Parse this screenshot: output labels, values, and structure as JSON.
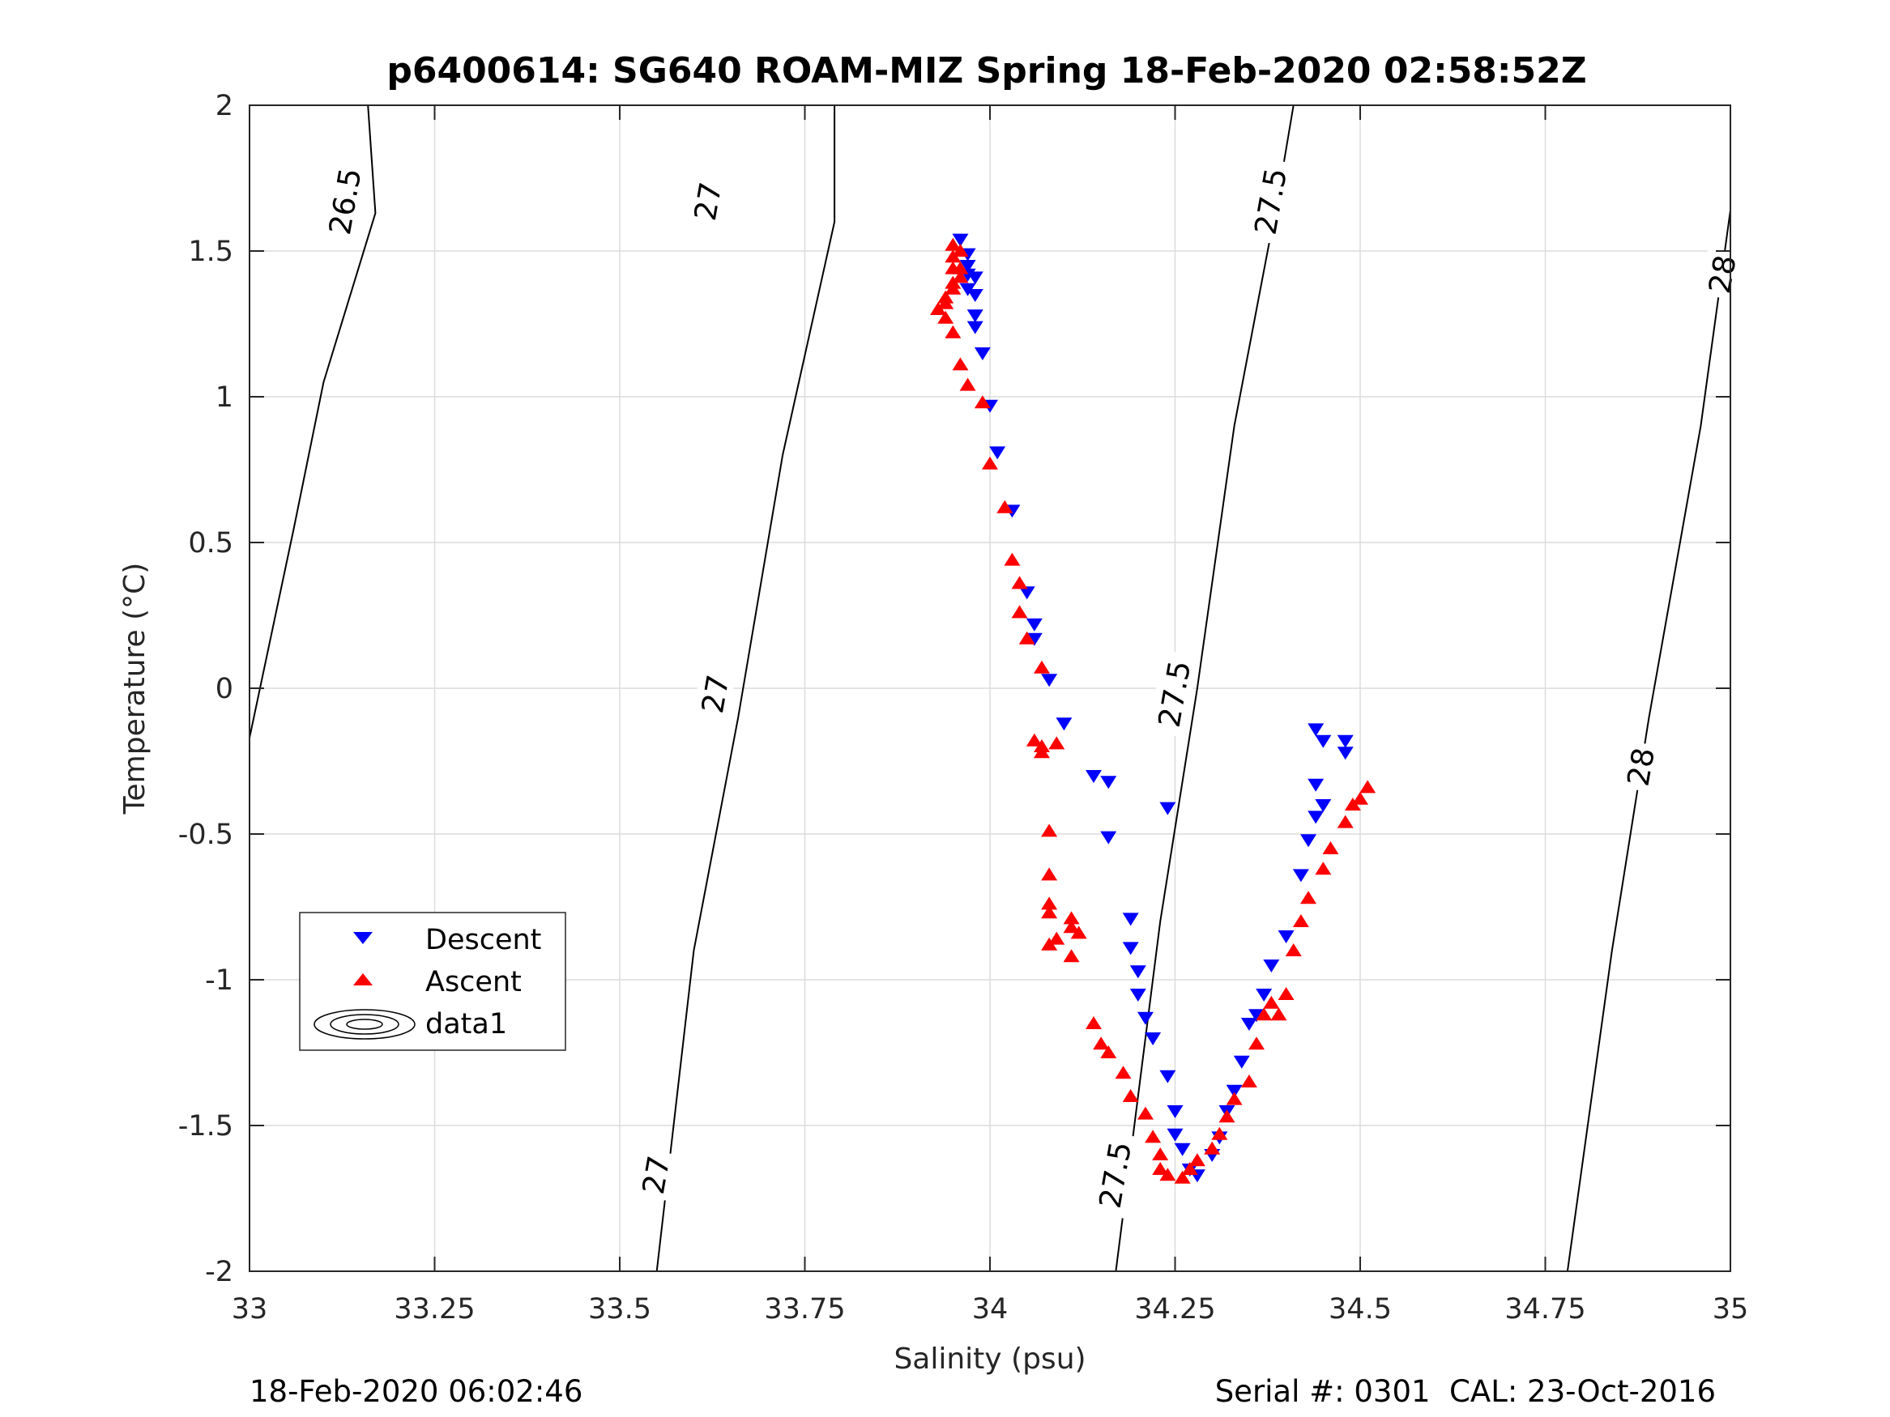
{
  "chart_data": {
    "type": "scatter",
    "title": "p6400614: SG640 ROAM-MIZ Spring 18-Feb-2020 02:58:52Z",
    "xlabel": "Salinity (psu)",
    "ylabel": "Temperature (°C)",
    "xlim": [
      33,
      35
    ],
    "ylim": [
      -2,
      2
    ],
    "xticks": [
      33,
      33.25,
      33.5,
      33.75,
      34,
      34.25,
      34.5,
      34.75,
      35
    ],
    "xtick_labels": [
      "33",
      "33.25",
      "33.5",
      "33.75",
      "34",
      "34.25",
      "34.5",
      "34.75",
      "35"
    ],
    "yticks": [
      -2,
      -1.5,
      -1,
      -0.5,
      0,
      0.5,
      1,
      1.5,
      2
    ],
    "ytick_labels": [
      "-2",
      "-1.5",
      "-1",
      "-0.5",
      "0",
      "0.5",
      "1",
      "1.5",
      "2"
    ],
    "grid": true,
    "legend_position": "lower-left",
    "legend": [
      "Descent",
      "Ascent",
      "data1"
    ],
    "density_contours": [
      {
        "level": "26.5",
        "points": [
          [
            33.0,
            -0.17
          ],
          [
            33.06,
            0.55
          ],
          [
            33.1,
            1.05
          ],
          [
            33.17,
            1.63
          ],
          [
            33.16,
            2.0
          ]
        ]
      },
      {
        "level": "27",
        "points": [
          [
            33.55,
            -2.0
          ],
          [
            33.6,
            -0.9
          ],
          [
            33.66,
            -0.1
          ],
          [
            33.72,
            0.8
          ],
          [
            33.79,
            1.6
          ],
          [
            33.79,
            2.0
          ]
        ]
      },
      {
        "level": "27.5",
        "points": [
          [
            34.17,
            -2.0
          ],
          [
            34.23,
            -0.8
          ],
          [
            34.28,
            0.0
          ],
          [
            34.33,
            0.9
          ],
          [
            34.39,
            1.7
          ],
          [
            34.41,
            2.0
          ]
        ]
      },
      {
        "level": "28",
        "points": [
          [
            34.78,
            -2.0
          ],
          [
            34.84,
            -0.9
          ],
          [
            34.89,
            -0.1
          ],
          [
            34.96,
            0.9
          ],
          [
            35.0,
            1.64
          ]
        ]
      }
    ],
    "contour_labels": [
      {
        "text": "26.5",
        "s": 33.13,
        "t": 1.67
      },
      {
        "text": "27",
        "s": 33.62,
        "t": 1.67
      },
      {
        "text": "27",
        "s": 33.63,
        "t": -0.02
      },
      {
        "text": "27",
        "s": 33.55,
        "t": -1.67
      },
      {
        "text": "27.5",
        "s": 34.38,
        "t": 1.67
      },
      {
        "text": "27.5",
        "s": 34.25,
        "t": -0.02
      },
      {
        "text": "27.5",
        "s": 34.17,
        "t": -1.67
      },
      {
        "text": "28",
        "s": 34.99,
        "t": 1.42
      },
      {
        "text": "28",
        "s": 34.88,
        "t": -0.27
      }
    ],
    "series": [
      {
        "name": "Descent",
        "color": "#0000ff",
        "marker": "triangle-down",
        "points": [
          [
            33.96,
            1.54
          ],
          [
            33.97,
            1.49
          ],
          [
            33.97,
            1.45
          ],
          [
            33.97,
            1.42
          ],
          [
            33.98,
            1.41
          ],
          [
            33.97,
            1.37
          ],
          [
            33.98,
            1.35
          ],
          [
            33.98,
            1.28
          ],
          [
            33.98,
            1.24
          ],
          [
            33.99,
            1.15
          ],
          [
            34.0,
            0.97
          ],
          [
            34.01,
            0.81
          ],
          [
            34.03,
            0.61
          ],
          [
            34.05,
            0.33
          ],
          [
            34.06,
            0.22
          ],
          [
            34.06,
            0.17
          ],
          [
            34.08,
            0.03
          ],
          [
            34.1,
            -0.12
          ],
          [
            34.14,
            -0.3
          ],
          [
            34.16,
            -0.32
          ],
          [
            34.16,
            -0.51
          ],
          [
            34.24,
            -0.41
          ],
          [
            34.19,
            -0.79
          ],
          [
            34.19,
            -0.89
          ],
          [
            34.2,
            -0.97
          ],
          [
            34.2,
            -1.05
          ],
          [
            34.21,
            -1.13
          ],
          [
            34.22,
            -1.2
          ],
          [
            34.24,
            -1.33
          ],
          [
            34.25,
            -1.45
          ],
          [
            34.25,
            -1.53
          ],
          [
            34.26,
            -1.58
          ],
          [
            34.27,
            -1.65
          ],
          [
            34.28,
            -1.67
          ],
          [
            34.3,
            -1.6
          ],
          [
            34.31,
            -1.54
          ],
          [
            34.32,
            -1.45
          ],
          [
            34.33,
            -1.38
          ],
          [
            34.34,
            -1.28
          ],
          [
            34.35,
            -1.15
          ],
          [
            34.36,
            -1.12
          ],
          [
            34.37,
            -1.05
          ],
          [
            34.38,
            -0.95
          ],
          [
            34.4,
            -0.85
          ],
          [
            34.42,
            -0.64
          ],
          [
            34.43,
            -0.52
          ],
          [
            34.44,
            -0.44
          ],
          [
            34.45,
            -0.4
          ],
          [
            34.44,
            -0.33
          ],
          [
            34.44,
            -0.14
          ],
          [
            34.45,
            -0.18
          ],
          [
            34.48,
            -0.22
          ],
          [
            34.48,
            -0.18
          ]
        ]
      },
      {
        "name": "Ascent",
        "color": "#ff0000",
        "marker": "triangle-up",
        "points": [
          [
            33.93,
            1.3
          ],
          [
            33.94,
            1.27
          ],
          [
            33.94,
            1.32
          ],
          [
            33.94,
            1.34
          ],
          [
            33.95,
            1.37
          ],
          [
            33.95,
            1.39
          ],
          [
            33.96,
            1.41
          ],
          [
            33.96,
            1.44
          ],
          [
            33.96,
            1.5
          ],
          [
            33.95,
            1.52
          ],
          [
            33.95,
            1.48
          ],
          [
            33.95,
            1.44
          ],
          [
            33.95,
            1.22
          ],
          [
            33.96,
            1.11
          ],
          [
            33.97,
            1.04
          ],
          [
            33.99,
            0.98
          ],
          [
            34.0,
            0.77
          ],
          [
            34.02,
            0.62
          ],
          [
            34.03,
            0.44
          ],
          [
            34.04,
            0.36
          ],
          [
            34.04,
            0.26
          ],
          [
            34.05,
            0.17
          ],
          [
            34.07,
            0.07
          ],
          [
            34.06,
            -0.18
          ],
          [
            34.07,
            -0.22
          ],
          [
            34.07,
            -0.2
          ],
          [
            34.09,
            -0.19
          ],
          [
            34.08,
            -0.49
          ],
          [
            34.08,
            -0.64
          ],
          [
            34.08,
            -0.74
          ],
          [
            34.08,
            -0.77
          ],
          [
            34.08,
            -0.88
          ],
          [
            34.09,
            -0.86
          ],
          [
            34.11,
            -0.79
          ],
          [
            34.11,
            -0.82
          ],
          [
            34.11,
            -0.92
          ],
          [
            34.12,
            -0.84
          ],
          [
            34.14,
            -1.15
          ],
          [
            34.15,
            -1.22
          ],
          [
            34.16,
            -1.25
          ],
          [
            34.18,
            -1.32
          ],
          [
            34.19,
            -1.4
          ],
          [
            34.21,
            -1.46
          ],
          [
            34.22,
            -1.54
          ],
          [
            34.23,
            -1.6
          ],
          [
            34.23,
            -1.65
          ],
          [
            34.24,
            -1.67
          ],
          [
            34.26,
            -1.68
          ],
          [
            34.27,
            -1.65
          ],
          [
            34.28,
            -1.62
          ],
          [
            34.3,
            -1.58
          ],
          [
            34.31,
            -1.53
          ],
          [
            34.32,
            -1.47
          ],
          [
            34.33,
            -1.41
          ],
          [
            34.35,
            -1.35
          ],
          [
            34.36,
            -1.22
          ],
          [
            34.37,
            -1.12
          ],
          [
            34.38,
            -1.08
          ],
          [
            34.39,
            -1.12
          ],
          [
            34.4,
            -1.05
          ],
          [
            34.41,
            -0.9
          ],
          [
            34.42,
            -0.8
          ],
          [
            34.43,
            -0.72
          ],
          [
            34.45,
            -0.62
          ],
          [
            34.46,
            -0.55
          ],
          [
            34.48,
            -0.46
          ],
          [
            34.49,
            -0.4
          ],
          [
            34.5,
            -0.38
          ],
          [
            34.51,
            -0.34
          ]
        ]
      }
    ]
  },
  "footer": {
    "left": "18-Feb-2020 06:02:46",
    "right": "Serial #: 0301  CAL: 23-Oct-2016"
  }
}
